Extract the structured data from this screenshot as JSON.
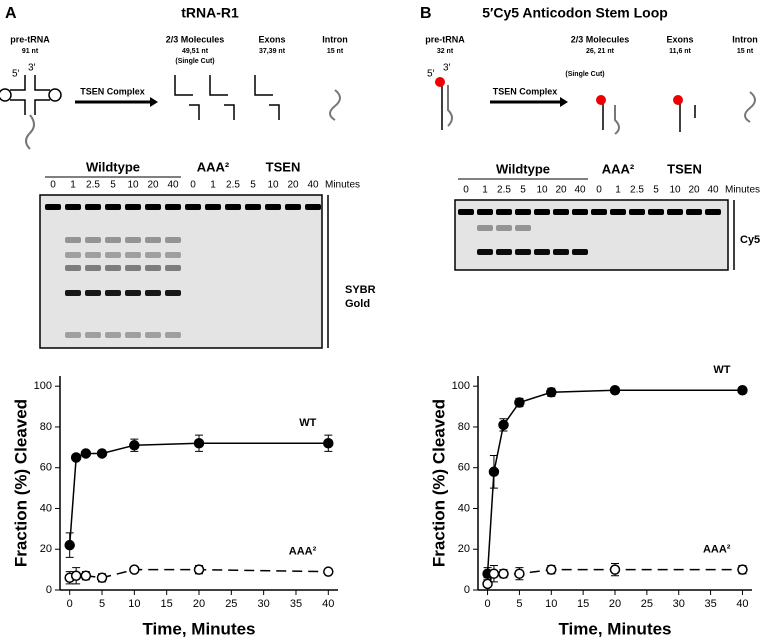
{
  "panels": [
    {
      "label": "A",
      "title": "tRNA-R1",
      "ends": [
        "5′",
        "3′"
      ],
      "enzyme": "TSEN Complex",
      "items": [
        {
          "name": "pre-tRNA",
          "size": "91 nt"
        },
        {
          "name": "2/3 Molecules",
          "size": "49,51 nt"
        },
        {
          "name": "Exons",
          "size": "37,39 nt"
        },
        {
          "name": "Intron",
          "size": "15 nt"
        }
      ],
      "note": "(Single Cut)",
      "gel": {
        "groups": [
          "Wildtype",
          "AAA²",
          "TSEN"
        ],
        "lanes": [
          "0",
          "1",
          "2.5",
          "5",
          "10",
          "20",
          "40",
          "0",
          "1",
          "2.5",
          "5",
          "10",
          "20",
          "40"
        ],
        "unit": "Minutes",
        "stain": [
          "SYBR",
          "Gold"
        ]
      }
    },
    {
      "label": "B",
      "title": "5′Cy5 Anticodon Stem Loop",
      "ends": [
        "5′",
        "3′"
      ],
      "enzyme": "TSEN Complex",
      "items": [
        {
          "name": "pre-tRNA",
          "size": "32 nt"
        },
        {
          "name": "2/3 Molecules",
          "size": "26, 21 nt"
        },
        {
          "name": "Exons",
          "size": "11,6 nt"
        },
        {
          "name": "Intron",
          "size": "15 nt"
        }
      ],
      "note": "(Single Cut)",
      "gel": {
        "groups": [
          "Wildtype",
          "AAA²",
          "TSEN"
        ],
        "lanes": [
          "0",
          "1",
          "2.5",
          "5",
          "10",
          "20",
          "40",
          "0",
          "1",
          "2.5",
          "5",
          "10",
          "20",
          "40"
        ],
        "unit": "Minutes",
        "stain": [
          "Cy5"
        ]
      }
    }
  ],
  "chart_data": [
    {
      "type": "line",
      "xlabel": "Time, Minutes",
      "ylabel": "Fraction (%) Cleaved",
      "x": [
        0,
        1,
        2.5,
        5,
        10,
        20,
        40
      ],
      "xlim": [
        -1.5,
        41.5
      ],
      "ylim": [
        0,
        105
      ],
      "xticks": [
        0,
        5,
        10,
        15,
        20,
        25,
        30,
        35,
        40
      ],
      "yticks": [
        0,
        20,
        40,
        60,
        80,
        100
      ],
      "series": [
        {
          "name": "WT",
          "color": "#000000",
          "marker": "filled",
          "dashed": false,
          "values": [
            22,
            65,
            67,
            67,
            71,
            72,
            72
          ],
          "errors": [
            6,
            1,
            1,
            1,
            3,
            4,
            4
          ]
        },
        {
          "name": "AAA²",
          "color": "#000000",
          "marker": "open",
          "dashed": true,
          "values": [
            6,
            7,
            7,
            6,
            10,
            10,
            9
          ],
          "errors": [
            3,
            4,
            2,
            2,
            1,
            2,
            1
          ]
        }
      ]
    },
    {
      "type": "line",
      "xlabel": "Time, Minutes",
      "ylabel": "Fraction (%) Cleaved",
      "x": [
        0,
        1,
        2.5,
        5,
        10,
        20,
        40
      ],
      "xlim": [
        -1.5,
        41.5
      ],
      "ylim": [
        0,
        105
      ],
      "xticks": [
        0,
        5,
        10,
        15,
        20,
        25,
        30,
        35,
        40
      ],
      "yticks": [
        0,
        20,
        40,
        60,
        80,
        100
      ],
      "series": [
        {
          "name": "WT",
          "color": "#000000",
          "marker": "filled",
          "dashed": false,
          "values": [
            8,
            58,
            81,
            92,
            97,
            98,
            98
          ],
          "errors": [
            3,
            8,
            3,
            2,
            2,
            1,
            1
          ]
        },
        {
          "name": "AAA²",
          "color": "#000000",
          "marker": "open",
          "dashed": true,
          "values": [
            3,
            8,
            8,
            8,
            10,
            10,
            10
          ],
          "errors": [
            3,
            4,
            2,
            3,
            2,
            3,
            2
          ]
        }
      ]
    }
  ]
}
